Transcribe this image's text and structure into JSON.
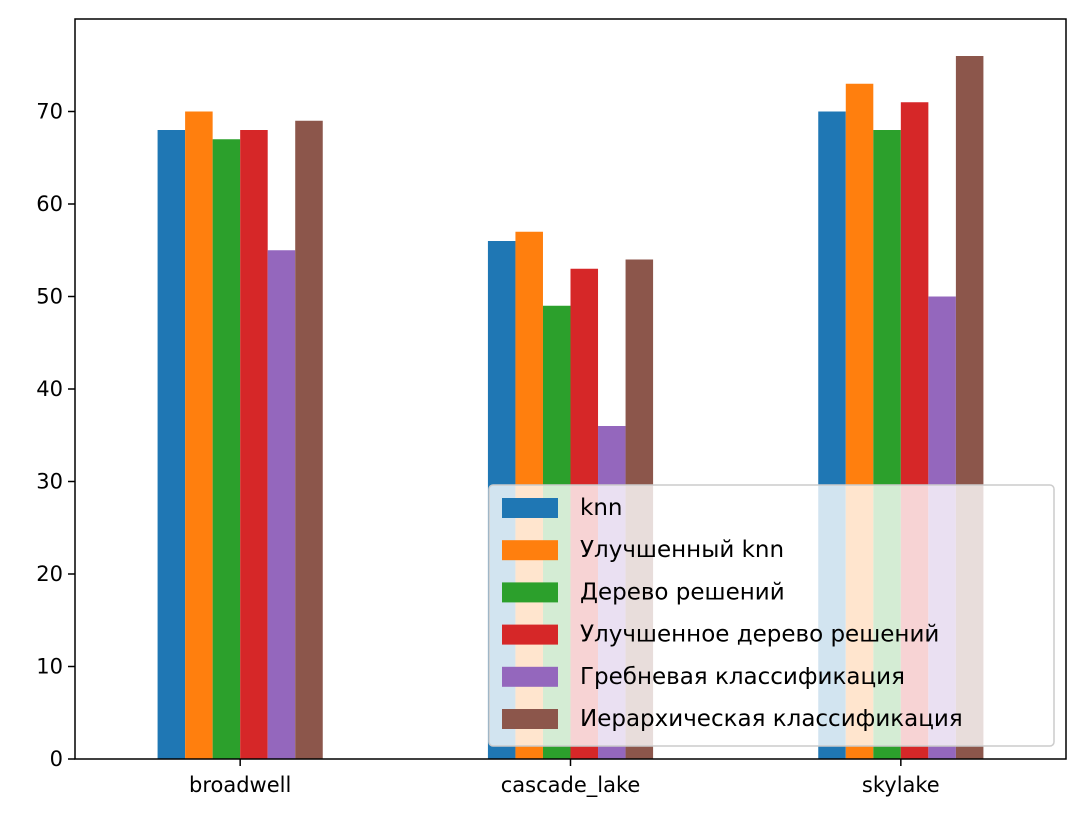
{
  "chart_data": {
    "type": "bar",
    "title": "",
    "xlabel": "",
    "ylabel": "",
    "categories": [
      "broadwell",
      "cascade_lake",
      "skylake"
    ],
    "ylim": [
      0,
      80
    ],
    "yticks": [
      0,
      10,
      20,
      30,
      40,
      50,
      60,
      70
    ],
    "grid": false,
    "legend_position": "bottom-right",
    "series": [
      {
        "name": "knn",
        "color": "#1f77b4",
        "values": [
          68,
          56,
          70
        ]
      },
      {
        "name": "Улучшенный knn",
        "color": "#ff7f0e",
        "values": [
          70,
          57,
          73
        ]
      },
      {
        "name": "Дерево решений",
        "color": "#2ca02c",
        "values": [
          67,
          49,
          68
        ]
      },
      {
        "name": "Улучшенное дерево решений",
        "color": "#d62728",
        "values": [
          68,
          53,
          71
        ]
      },
      {
        "name": "Гребневая классификация",
        "color": "#9467bd",
        "values": [
          55,
          36,
          50
        ]
      },
      {
        "name": "Иерархическая классификация",
        "color": "#8c564b",
        "values": [
          69,
          54,
          76
        ]
      }
    ]
  }
}
